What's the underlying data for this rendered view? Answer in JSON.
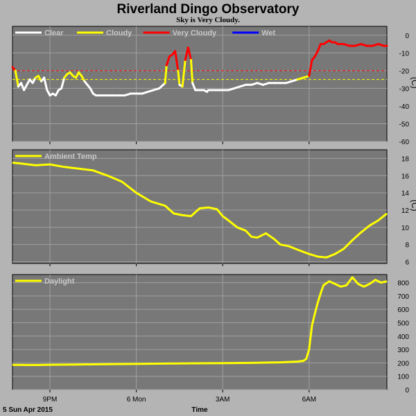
{
  "title": "Riverland Dingo Observatory",
  "subtitle": "Sky is Very Cloudy.",
  "footer": {
    "date": "5 Sun Apr 2015",
    "xlabel": "Time"
  },
  "colors": {
    "plot_bg": "#787878",
    "grid": "#a0a0a0",
    "clear": "#ffffff",
    "cloudy": "#ffff00",
    "very_cloudy": "#ff0000",
    "wet": "#0000ff",
    "frame_bg": "#b4b4b4"
  },
  "chart_data": [
    {
      "type": "line",
      "name": "sky",
      "legend": [
        {
          "label": "Clear",
          "color": "#ffffff"
        },
        {
          "label": "Cloudy",
          "color": "#ffff00"
        },
        {
          "label": "Very Cloudy",
          "color": "#ff0000"
        },
        {
          "label": "Wet",
          "color": "#0000ff"
        }
      ],
      "ylabel": "(C)",
      "ylim": [
        -60,
        5
      ],
      "yticks": [
        0,
        -10,
        -20,
        -30,
        -40,
        -50,
        -60
      ],
      "thresholds": [
        {
          "value": -20,
          "color": "#ff0000"
        },
        {
          "value": -25,
          "color": "#ffff00"
        }
      ],
      "xlim": [
        19.7,
        32.7
      ],
      "xticks": [
        {
          "x": 21,
          "label": "9PM"
        },
        {
          "x": 24,
          "label": "6 Mon"
        },
        {
          "x": 27,
          "label": "3AM"
        },
        {
          "x": 30,
          "label": "6AM"
        }
      ],
      "x": [
        19.7,
        19.8,
        19.9,
        20.0,
        20.1,
        20.2,
        20.3,
        20.4,
        20.5,
        20.6,
        20.7,
        20.8,
        20.9,
        21.0,
        21.1,
        21.2,
        21.3,
        21.4,
        21.5,
        21.6,
        21.7,
        21.8,
        21.9,
        22.0,
        22.1,
        22.2,
        22.3,
        22.4,
        22.5,
        22.6,
        22.8,
        23.0,
        23.2,
        23.4,
        23.6,
        23.8,
        24.0,
        24.2,
        24.4,
        24.6,
        24.8,
        25.0,
        25.05,
        25.15,
        25.25,
        25.35,
        25.45,
        25.5,
        25.6,
        25.7,
        25.8,
        25.9,
        25.95,
        26.05,
        26.15,
        26.25,
        26.35,
        26.45,
        26.5,
        26.6,
        26.8,
        27.0,
        27.2,
        27.4,
        27.6,
        27.8,
        28.0,
        28.2,
        28.4,
        28.6,
        28.8,
        29.0,
        29.2,
        29.4,
        29.6,
        29.8,
        30.0,
        30.1,
        30.2,
        30.3,
        30.4,
        30.5,
        30.6,
        30.7,
        30.8,
        30.9,
        31.0,
        31.2,
        31.4,
        31.6,
        31.8,
        32.0,
        32.2,
        32.4,
        32.6,
        32.7
      ],
      "y": [
        -18,
        -20,
        -29,
        -27,
        -31,
        -28,
        -25,
        -27,
        -24,
        -23,
        -26,
        -24,
        -31,
        -34,
        -33,
        -34,
        -31,
        -30,
        -24,
        -22,
        -21,
        -23,
        -24,
        -21,
        -23,
        -26,
        -28,
        -30,
        -33,
        -34,
        -34,
        -34,
        -34,
        -34,
        -34,
        -33,
        -33,
        -33,
        -32,
        -31,
        -30,
        -27,
        -17,
        -12,
        -11,
        -9,
        -20,
        -28,
        -29,
        -14,
        -7,
        -14,
        -27,
        -31,
        -31,
        -31,
        -31,
        -32,
        -31,
        -31,
        -31,
        -31,
        -31,
        -30,
        -29,
        -28,
        -28,
        -27,
        -28,
        -27,
        -27,
        -27,
        -27,
        -26,
        -25,
        -24,
        -23,
        -14,
        -12,
        -9,
        -5,
        -5,
        -4,
        -3,
        -4,
        -4,
        -5,
        -5,
        -6,
        -6,
        -5,
        -6,
        -6,
        -5,
        -6,
        -6
      ]
    },
    {
      "type": "line",
      "name": "temp",
      "legend": [
        {
          "label": "Ambient Temp",
          "color": "#ffff00"
        }
      ],
      "ylabel": "(C)",
      "ylim": [
        5.8,
        19
      ],
      "yticks": [
        18,
        16,
        14,
        12,
        10,
        8,
        6
      ],
      "xlim": [
        19.7,
        32.7
      ],
      "x": [
        19.7,
        20.0,
        20.5,
        21.0,
        21.5,
        22.0,
        22.5,
        23.0,
        23.5,
        24.0,
        24.5,
        25.0,
        25.3,
        25.6,
        25.9,
        26.2,
        26.5,
        26.8,
        27.0,
        27.2,
        27.5,
        27.8,
        28.0,
        28.2,
        28.5,
        28.8,
        29.0,
        29.3,
        29.6,
        30.0,
        30.3,
        30.6,
        30.9,
        31.2,
        31.5,
        31.8,
        32.1,
        32.4,
        32.7
      ],
      "y": [
        17.5,
        17.4,
        17.2,
        17.3,
        17.0,
        16.8,
        16.6,
        16.0,
        15.3,
        14.0,
        13.0,
        12.5,
        11.6,
        11.4,
        11.3,
        12.2,
        12.3,
        12.1,
        11.3,
        10.8,
        10.0,
        9.6,
        8.9,
        8.8,
        9.3,
        8.6,
        8.0,
        7.8,
        7.4,
        6.9,
        6.6,
        6.5,
        6.9,
        7.5,
        8.5,
        9.4,
        10.2,
        10.8,
        11.6
      ]
    },
    {
      "type": "line",
      "name": "daylight",
      "legend": [
        {
          "label": "Daylight",
          "color": "#ffff00"
        }
      ],
      "ylabel": "",
      "ylim": [
        0,
        860
      ],
      "yticks": [
        800,
        700,
        600,
        500,
        400,
        300,
        200,
        100,
        0
      ],
      "xlim": [
        19.7,
        32.7
      ],
      "x": [
        19.7,
        20.5,
        21.0,
        22.0,
        23.0,
        24.0,
        25.0,
        26.0,
        27.0,
        28.0,
        29.0,
        29.6,
        29.8,
        29.9,
        30.0,
        30.1,
        30.2,
        30.3,
        30.4,
        30.5,
        30.7,
        30.9,
        31.1,
        31.3,
        31.5,
        31.7,
        31.9,
        32.1,
        32.3,
        32.5,
        32.7
      ],
      "y": [
        185,
        184,
        186,
        188,
        190,
        192,
        195,
        197,
        198,
        200,
        204,
        210,
        215,
        230,
        300,
        480,
        570,
        650,
        720,
        780,
        810,
        790,
        770,
        780,
        840,
        790,
        770,
        790,
        820,
        800,
        810
      ]
    }
  ]
}
